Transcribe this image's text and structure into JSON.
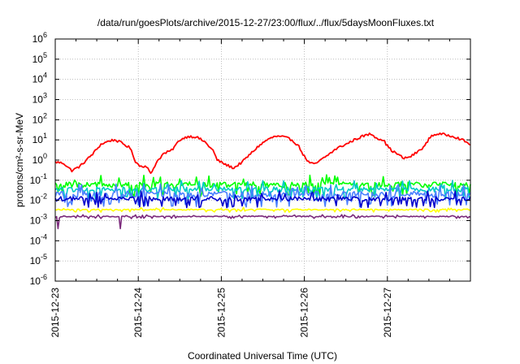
{
  "chart_data": {
    "type": "line",
    "title": "/data/run/goesPlots/archive/2015-12-27/23:00/flux/../flux/5daysMoonFluxes.txt",
    "xlabel": "Coordinated Universal Time (UTC)",
    "ylabel": "protons/cm²-s-sr-MeV",
    "yscale": "log",
    "ylim": [
      1e-06,
      1000000.0
    ],
    "xlim": [
      "2015-12-23",
      "2015-12-28"
    ],
    "grid": true,
    "legend": "none",
    "x_ticks": [
      "2015-12-23",
      "2015-12-24",
      "2015-12-25",
      "2015-12-26",
      "2015-12-27"
    ],
    "y_ticks": [
      {
        "value": 1e-06,
        "base": "10",
        "exp": "-6"
      },
      {
        "value": 1e-05,
        "base": "10",
        "exp": "-5"
      },
      {
        "value": 0.0001,
        "base": "10",
        "exp": "-4"
      },
      {
        "value": 0.001,
        "base": "10",
        "exp": "-3"
      },
      {
        "value": 0.01,
        "base": "10",
        "exp": "-2"
      },
      {
        "value": 0.1,
        "base": "10",
        "exp": "-1"
      },
      {
        "value": 1,
        "base": "10",
        "exp": "0"
      },
      {
        "value": 10,
        "base": "10",
        "exp": "1"
      },
      {
        "value": 100,
        "base": "10",
        "exp": "2"
      },
      {
        "value": 1000,
        "base": "10",
        "exp": "3"
      },
      {
        "value": 10000,
        "base": "10",
        "exp": "4"
      },
      {
        "value": 100000,
        "base": "10",
        "exp": "5"
      },
      {
        "value": 1000000,
        "base": "10",
        "exp": "6"
      }
    ],
    "series": [
      {
        "color": "#ff0000",
        "anchors": [
          [
            0.0,
            0.8
          ],
          [
            0.1,
            0.7
          ],
          [
            0.2,
            0.3
          ],
          [
            0.3,
            0.5
          ],
          [
            0.45,
            2.0
          ],
          [
            0.55,
            6.0
          ],
          [
            0.65,
            9.0
          ],
          [
            0.72,
            10.0
          ],
          [
            0.8,
            7.0
          ],
          [
            0.9,
            4.0
          ],
          [
            0.97,
            0.8
          ],
          [
            1.02,
            0.5
          ],
          [
            1.1,
            0.5
          ],
          [
            1.15,
            0.2
          ],
          [
            1.22,
            0.8
          ],
          [
            1.3,
            2.0
          ],
          [
            1.4,
            3.0
          ],
          [
            1.5,
            10.0
          ],
          [
            1.6,
            15.0
          ],
          [
            1.7,
            14.0
          ],
          [
            1.8,
            8.0
          ],
          [
            1.9,
            3.0
          ],
          [
            1.95,
            1.0
          ],
          [
            2.05,
            0.6
          ],
          [
            2.15,
            0.4
          ],
          [
            2.25,
            0.8
          ],
          [
            2.35,
            2.0
          ],
          [
            2.45,
            5.0
          ],
          [
            2.55,
            10.0
          ],
          [
            2.65,
            15.0
          ],
          [
            2.75,
            14.0
          ],
          [
            2.85,
            10.0
          ],
          [
            2.93,
            5.0
          ],
          [
            3.0,
            1.5
          ],
          [
            3.05,
            0.8
          ],
          [
            3.12,
            0.6
          ],
          [
            3.2,
            1.0
          ],
          [
            3.3,
            2.0
          ],
          [
            3.4,
            4.0
          ],
          [
            3.5,
            6.0
          ],
          [
            3.6,
            10.0
          ],
          [
            3.7,
            15.0
          ],
          [
            3.8,
            20.0
          ],
          [
            3.88,
            12.0
          ],
          [
            3.95,
            10.0
          ],
          [
            4.0,
            5.0
          ],
          [
            4.05,
            3.0
          ],
          [
            4.12,
            2.0
          ],
          [
            4.2,
            1.2
          ],
          [
            4.28,
            1.5
          ],
          [
            4.36,
            2.5
          ],
          [
            4.45,
            5.0
          ],
          [
            4.52,
            15.0
          ],
          [
            4.6,
            20.0
          ],
          [
            4.7,
            18.0
          ],
          [
            4.8,
            15.0
          ],
          [
            4.9,
            10.0
          ],
          [
            5.0,
            6.0
          ]
        ],
        "jitter": 0.12,
        "dips": []
      },
      {
        "color": "#00ff00",
        "base": 0.06,
        "jitter": 0.28,
        "dips": []
      },
      {
        "color": "#00c8c8",
        "base": 0.035,
        "jitter": 0.25,
        "dips": []
      },
      {
        "color": "#4a7fff",
        "base": 0.02,
        "jitter": 0.3,
        "dips": []
      },
      {
        "color": "#0000cc",
        "base": 0.012,
        "jitter": 0.22,
        "dips": []
      },
      {
        "color": "#ffff00",
        "base": 0.0035,
        "jitter": 0.06,
        "dips": []
      },
      {
        "color": "#7b2a7b",
        "base": 0.0016,
        "jitter": 0.05,
        "dips": [
          [
            0.04,
            0.0004
          ],
          [
            0.78,
            0.0004
          ]
        ]
      }
    ]
  }
}
